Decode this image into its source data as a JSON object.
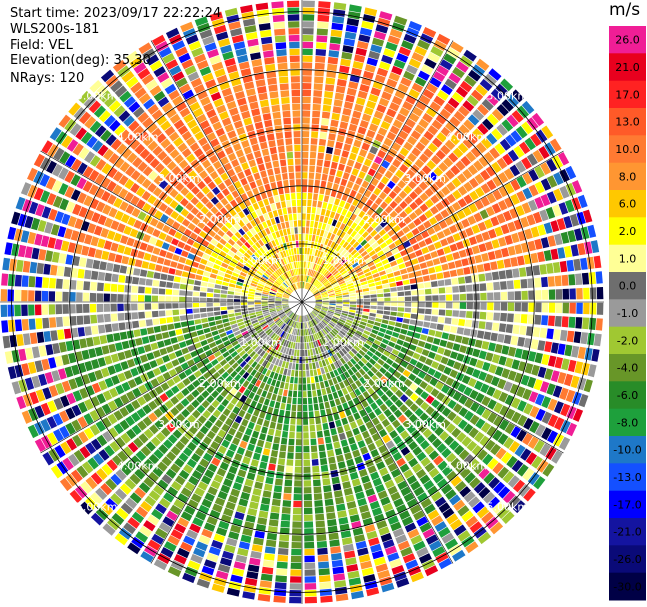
{
  "header": {
    "start_time": "Start time: 2023/09/17 22:22:24",
    "instrument": "WLS200s-181",
    "field": "Field: VEL",
    "elevation": "Elevation(deg): 35.30",
    "nrays": "NRays: 120"
  },
  "colorbar": {
    "unit": "m/s",
    "ticks": [
      "26.0",
      "21.0",
      "17.0",
      "13.0",
      "10.0",
      "8.0",
      "6.0",
      "2.0",
      "1.0",
      "0.0",
      "-1.0",
      "-2.0",
      "-4.0",
      "-6.0",
      "-8.0",
      "-10.0",
      "-13.0",
      "-17.0",
      "-21.0",
      "-26.0",
      "-30.0"
    ],
    "colors": [
      "#f01e96",
      "#e8001e",
      "#ff2222",
      "#ff5a28",
      "#ff7a32",
      "#ff9632",
      "#ffc800",
      "#ffff00",
      "#ffff96",
      "#6e6e6e",
      "#9a9a9a",
      "#a0c832",
      "#689628",
      "#288c28",
      "#1ea03c",
      "#1e78c8",
      "#1450ff",
      "#0000ff",
      "#1414a0",
      "#0a0a78",
      "#000046"
    ]
  },
  "rings": {
    "labels": [
      "1.00km",
      "2.00km",
      "3.00km",
      "4.00km",
      "5.00km"
    ],
    "max_km": 5.2
  },
  "icons": {
    "range_ring": "range-ring",
    "radial_line": "radial-spoke"
  }
}
